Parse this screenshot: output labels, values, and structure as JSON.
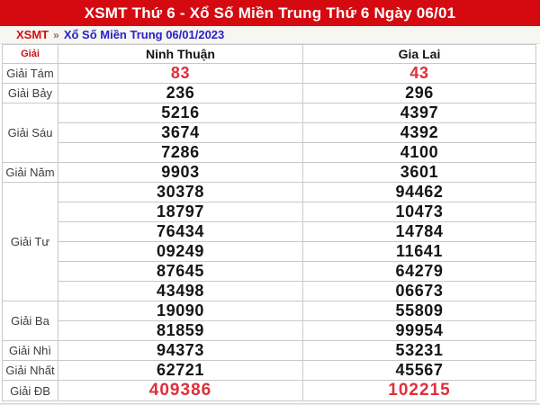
{
  "page": {
    "title": "XSMT Thứ 6 - Xổ Số Miền Trung Thứ 6 Ngày 06/01"
  },
  "breadcrumb": {
    "root": "XSMT",
    "separator": "»",
    "current": "Xổ Số Miền Trung 06/01/2023"
  },
  "colors": {
    "title_bar_bg": "#d50a10",
    "title_text": "#ffffff",
    "breadcrumb_root": "#cc1111",
    "breadcrumb_link": "#2a20c8",
    "highlight_number": "#e02f3a",
    "normal_number": "#151515",
    "grid_border": "#c9c9c9"
  },
  "table": {
    "prize_header": "Giải",
    "provinces": [
      "Ninh Thuận",
      "Gia Lai"
    ],
    "groups": [
      {
        "label": "Giải Tám",
        "highlight": true,
        "special": false,
        "rows": [
          [
            "83",
            "43"
          ]
        ]
      },
      {
        "label": "Giải Bảy",
        "highlight": false,
        "special": false,
        "rows": [
          [
            "236",
            "296"
          ]
        ]
      },
      {
        "label": "Giải Sáu",
        "highlight": false,
        "special": false,
        "rows": [
          [
            "5216",
            "4397"
          ],
          [
            "3674",
            "4392"
          ],
          [
            "7286",
            "4100"
          ]
        ]
      },
      {
        "label": "Giải Năm",
        "highlight": false,
        "special": false,
        "rows": [
          [
            "9903",
            "3601"
          ]
        ]
      },
      {
        "label": "Giải Tư",
        "highlight": false,
        "special": false,
        "rows": [
          [
            "30378",
            "94462"
          ],
          [
            "18797",
            "10473"
          ],
          [
            "76434",
            "14784"
          ],
          [
            "09249",
            "11641"
          ],
          [
            "87645",
            "64279"
          ],
          [
            "43498",
            "06673"
          ]
        ]
      },
      {
        "label": "Giải Ba",
        "highlight": false,
        "special": false,
        "rows": [
          [
            "19090",
            "55809"
          ],
          [
            "81859",
            "99954"
          ]
        ]
      },
      {
        "label": "Giải Nhì",
        "highlight": false,
        "special": false,
        "rows": [
          [
            "94373",
            "53231"
          ]
        ]
      },
      {
        "label": "Giải Nhất",
        "highlight": false,
        "special": false,
        "rows": [
          [
            "62721",
            "45567"
          ]
        ]
      },
      {
        "label": "Giải ĐB",
        "highlight": true,
        "special": true,
        "rows": [
          [
            "409386",
            "102215"
          ]
        ]
      }
    ]
  }
}
